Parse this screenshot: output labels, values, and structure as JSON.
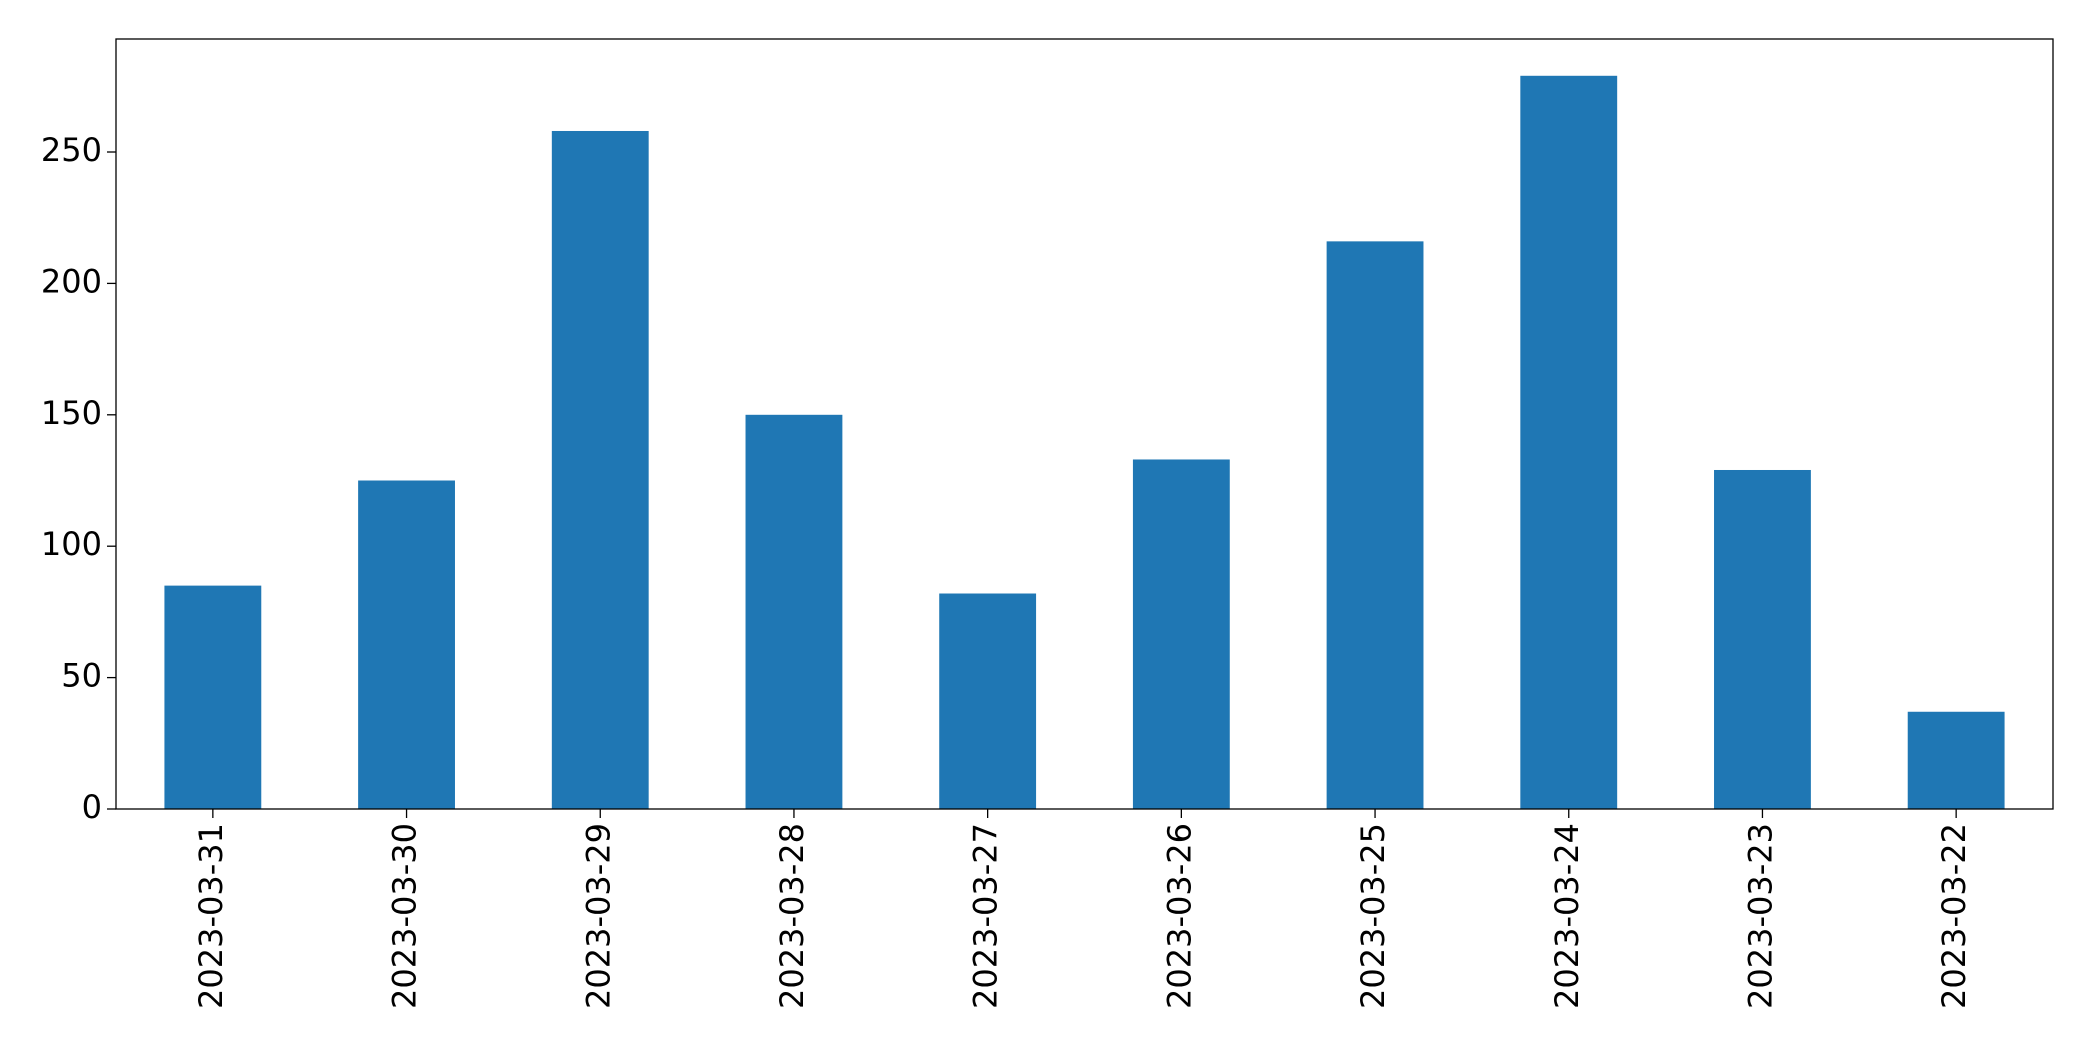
{
  "chart_data": {
    "type": "bar",
    "categories": [
      "2023-03-31",
      "2023-03-30",
      "2023-03-29",
      "2023-03-28",
      "2023-03-27",
      "2023-03-26",
      "2023-03-25",
      "2023-03-24",
      "2023-03-23",
      "2023-03-22"
    ],
    "values": [
      85,
      125,
      258,
      150,
      82,
      133,
      216,
      279,
      129,
      37
    ],
    "color": "#1f77b4",
    "ylim": [
      0,
      293
    ],
    "yticks": [
      0,
      50,
      100,
      150,
      200,
      250
    ],
    "grid": false
  }
}
